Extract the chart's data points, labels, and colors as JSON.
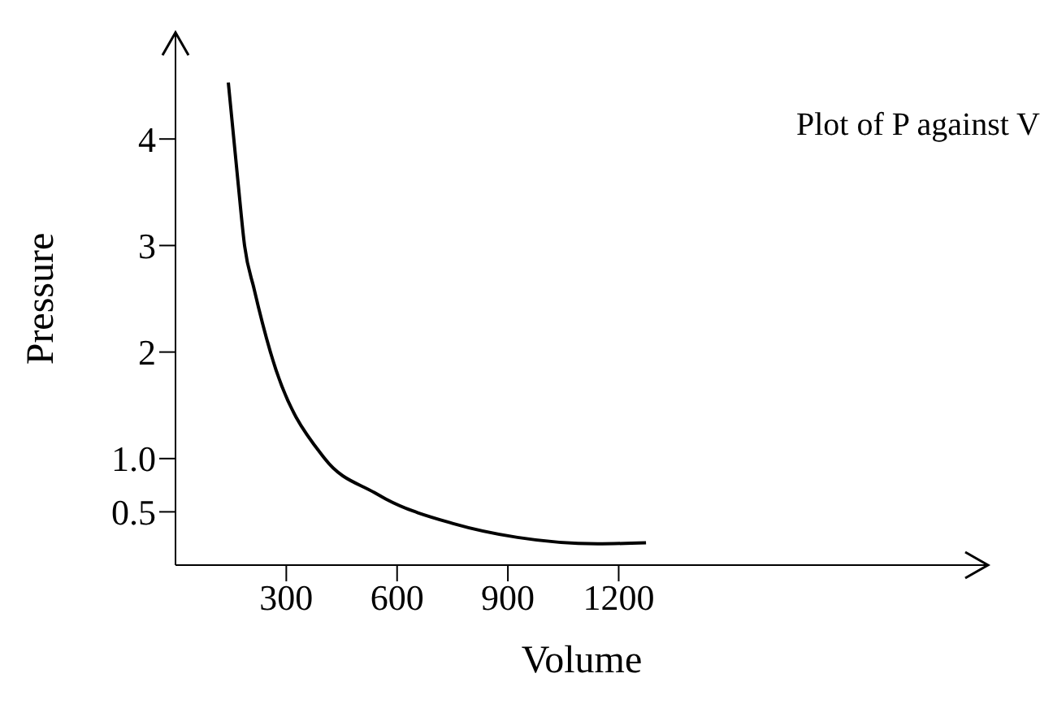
{
  "chart_data": {
    "type": "line",
    "title": "Plot of P against V",
    "xlabel": "Volume",
    "ylabel": "Pressure",
    "x": [
      143,
      170,
      187,
      213,
      257,
      404,
      539,
      570,
      752,
      926,
      1143,
      1274
    ],
    "series": [
      {
        "color": "#000000",
        "values": [
          4.53,
          3.57,
          3.0,
          2.59,
          2.0,
          1.0,
          0.68,
          0.62,
          0.39,
          0.26,
          0.2,
          0.21
        ]
      }
    ],
    "xlim": [
      0,
      2200
    ],
    "xticks": [
      300,
      600,
      900,
      1200
    ],
    "ylim": [
      0,
      5
    ],
    "yticks": [
      0.5,
      {
        "value": 1,
        "label": "1.0"
      },
      2,
      3,
      4
    ],
    "line_style": "solid"
  }
}
